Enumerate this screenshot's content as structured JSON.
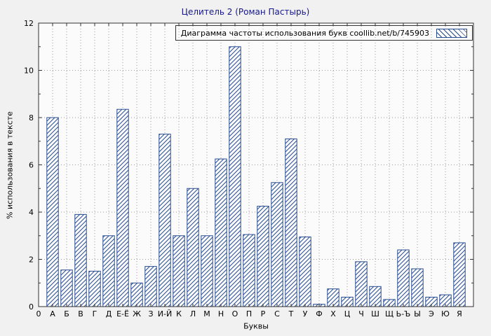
{
  "figure": {
    "title": "Целитель 2 (Роман Пастырь)",
    "legend_label": "Диаграмма частоты использования букв coollib.net/b/745903",
    "ylabel": "% использования в тексте",
    "xlabel": "Буквы",
    "origin_tick": "0"
  },
  "colors": {
    "bar": "#274b8f",
    "bar_fill_bg": "#fdfdfd",
    "grid": "#9a9a9a",
    "border": "#333333",
    "figure_bg": "#f1f1f1",
    "plot_bg": "#fbfbfb",
    "title": "#16168c",
    "text": "#000000"
  },
  "chart_data": {
    "type": "bar",
    "title": "Целитель 2 (Роман Пастырь)",
    "legend": "Диаграмма частоты использования букв coollib.net/b/745903",
    "legend_position": "top-right",
    "xlabel": "Буквы",
    "ylabel": "% использования в тексте",
    "ylim": [
      0,
      12
    ],
    "yticks": [
      0,
      2,
      4,
      6,
      8,
      10,
      12
    ],
    "grid": true,
    "hatch": "diagonal",
    "categories": [
      "А",
      "Б",
      "В",
      "Г",
      "Д",
      "Е-Ё",
      "Ж",
      "З",
      "И-Й",
      "К",
      "Л",
      "М",
      "Н",
      "О",
      "П",
      "Р",
      "С",
      "Т",
      "У",
      "Ф",
      "Х",
      "Ц",
      "Ч",
      "Ш",
      "Щ",
      "Ь-Ъ",
      "Ы",
      "Э",
      "Ю",
      "Я"
    ],
    "values": [
      8.0,
      1.55,
      3.9,
      1.5,
      3.0,
      8.35,
      1.0,
      1.7,
      7.3,
      3.0,
      5.0,
      3.0,
      6.25,
      11.0,
      3.05,
      4.25,
      5.25,
      7.1,
      2.95,
      0.1,
      0.75,
      0.4,
      1.9,
      0.85,
      0.3,
      2.4,
      1.6,
      0.4,
      0.5,
      2.7
    ]
  }
}
